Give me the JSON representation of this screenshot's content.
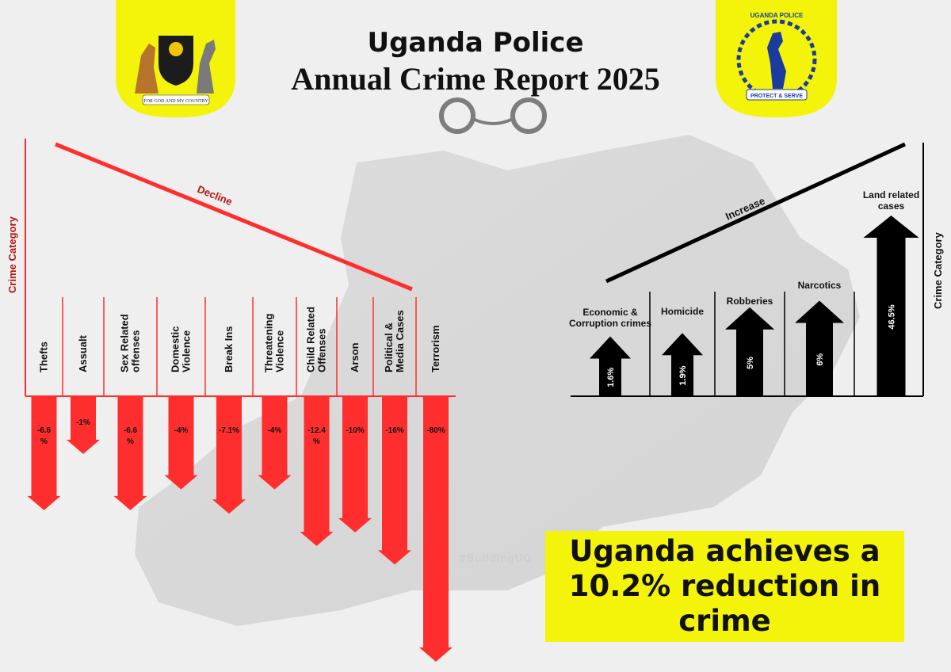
{
  "header": {
    "title_line1": "Uganda Police",
    "title_line2": "Annual Crime Report 2025"
  },
  "logos": {
    "left": {
      "name": "uganda-coat-of-arms",
      "motto": "FOR GOD AND MY COUNTRY",
      "bg": "#f4f40a"
    },
    "right": {
      "name": "uganda-police-badge",
      "top_text": "UGANDA POLICE",
      "bottom_text": "PROTECT & SERVE",
      "bg": "#f4f40a"
    }
  },
  "callout": {
    "text": "Uganda achieves a 10.2% reduction in crime"
  },
  "hashtag": "#BuildingUG",
  "colors": {
    "decline": "#ff2e2e",
    "decline_text": "#b41414",
    "increase": "#000000",
    "highlight": "#f4f40a"
  },
  "chart_data": [
    {
      "type": "bar",
      "trend_label": "Decline",
      "ylabel": "Crime Category",
      "categories": [
        "Thefts",
        "Assualt",
        "Sex Related offenses",
        "Domestic Violence",
        "Break Ins",
        "Threatening Violence",
        "Child Related Offenses",
        "Arson",
        "Political & Media Cases",
        "Terrorism"
      ],
      "values": [
        -6.6,
        -1,
        -6.6,
        -4,
        -7.1,
        -4,
        -12.4,
        -10,
        -16,
        -80
      ],
      "data_labels": [
        "-6.6 %",
        "-1%",
        "-6.6 %",
        "-4%",
        "-7.1%",
        "-4%",
        "-12.4 %",
        "-10%",
        "-16%",
        "-80%"
      ]
    },
    {
      "type": "bar",
      "trend_label": "Increase",
      "ylabel": "Crime Category",
      "categories": [
        "Economic & Corruption crimes",
        "Homicide",
        "Robberies",
        "Narcotics",
        "Land related cases"
      ],
      "values": [
        1.6,
        1.9,
        5,
        6,
        46.5
      ],
      "data_labels": [
        "1.6%",
        "1.9%",
        "5%",
        "6%",
        "46.5%"
      ]
    }
  ]
}
